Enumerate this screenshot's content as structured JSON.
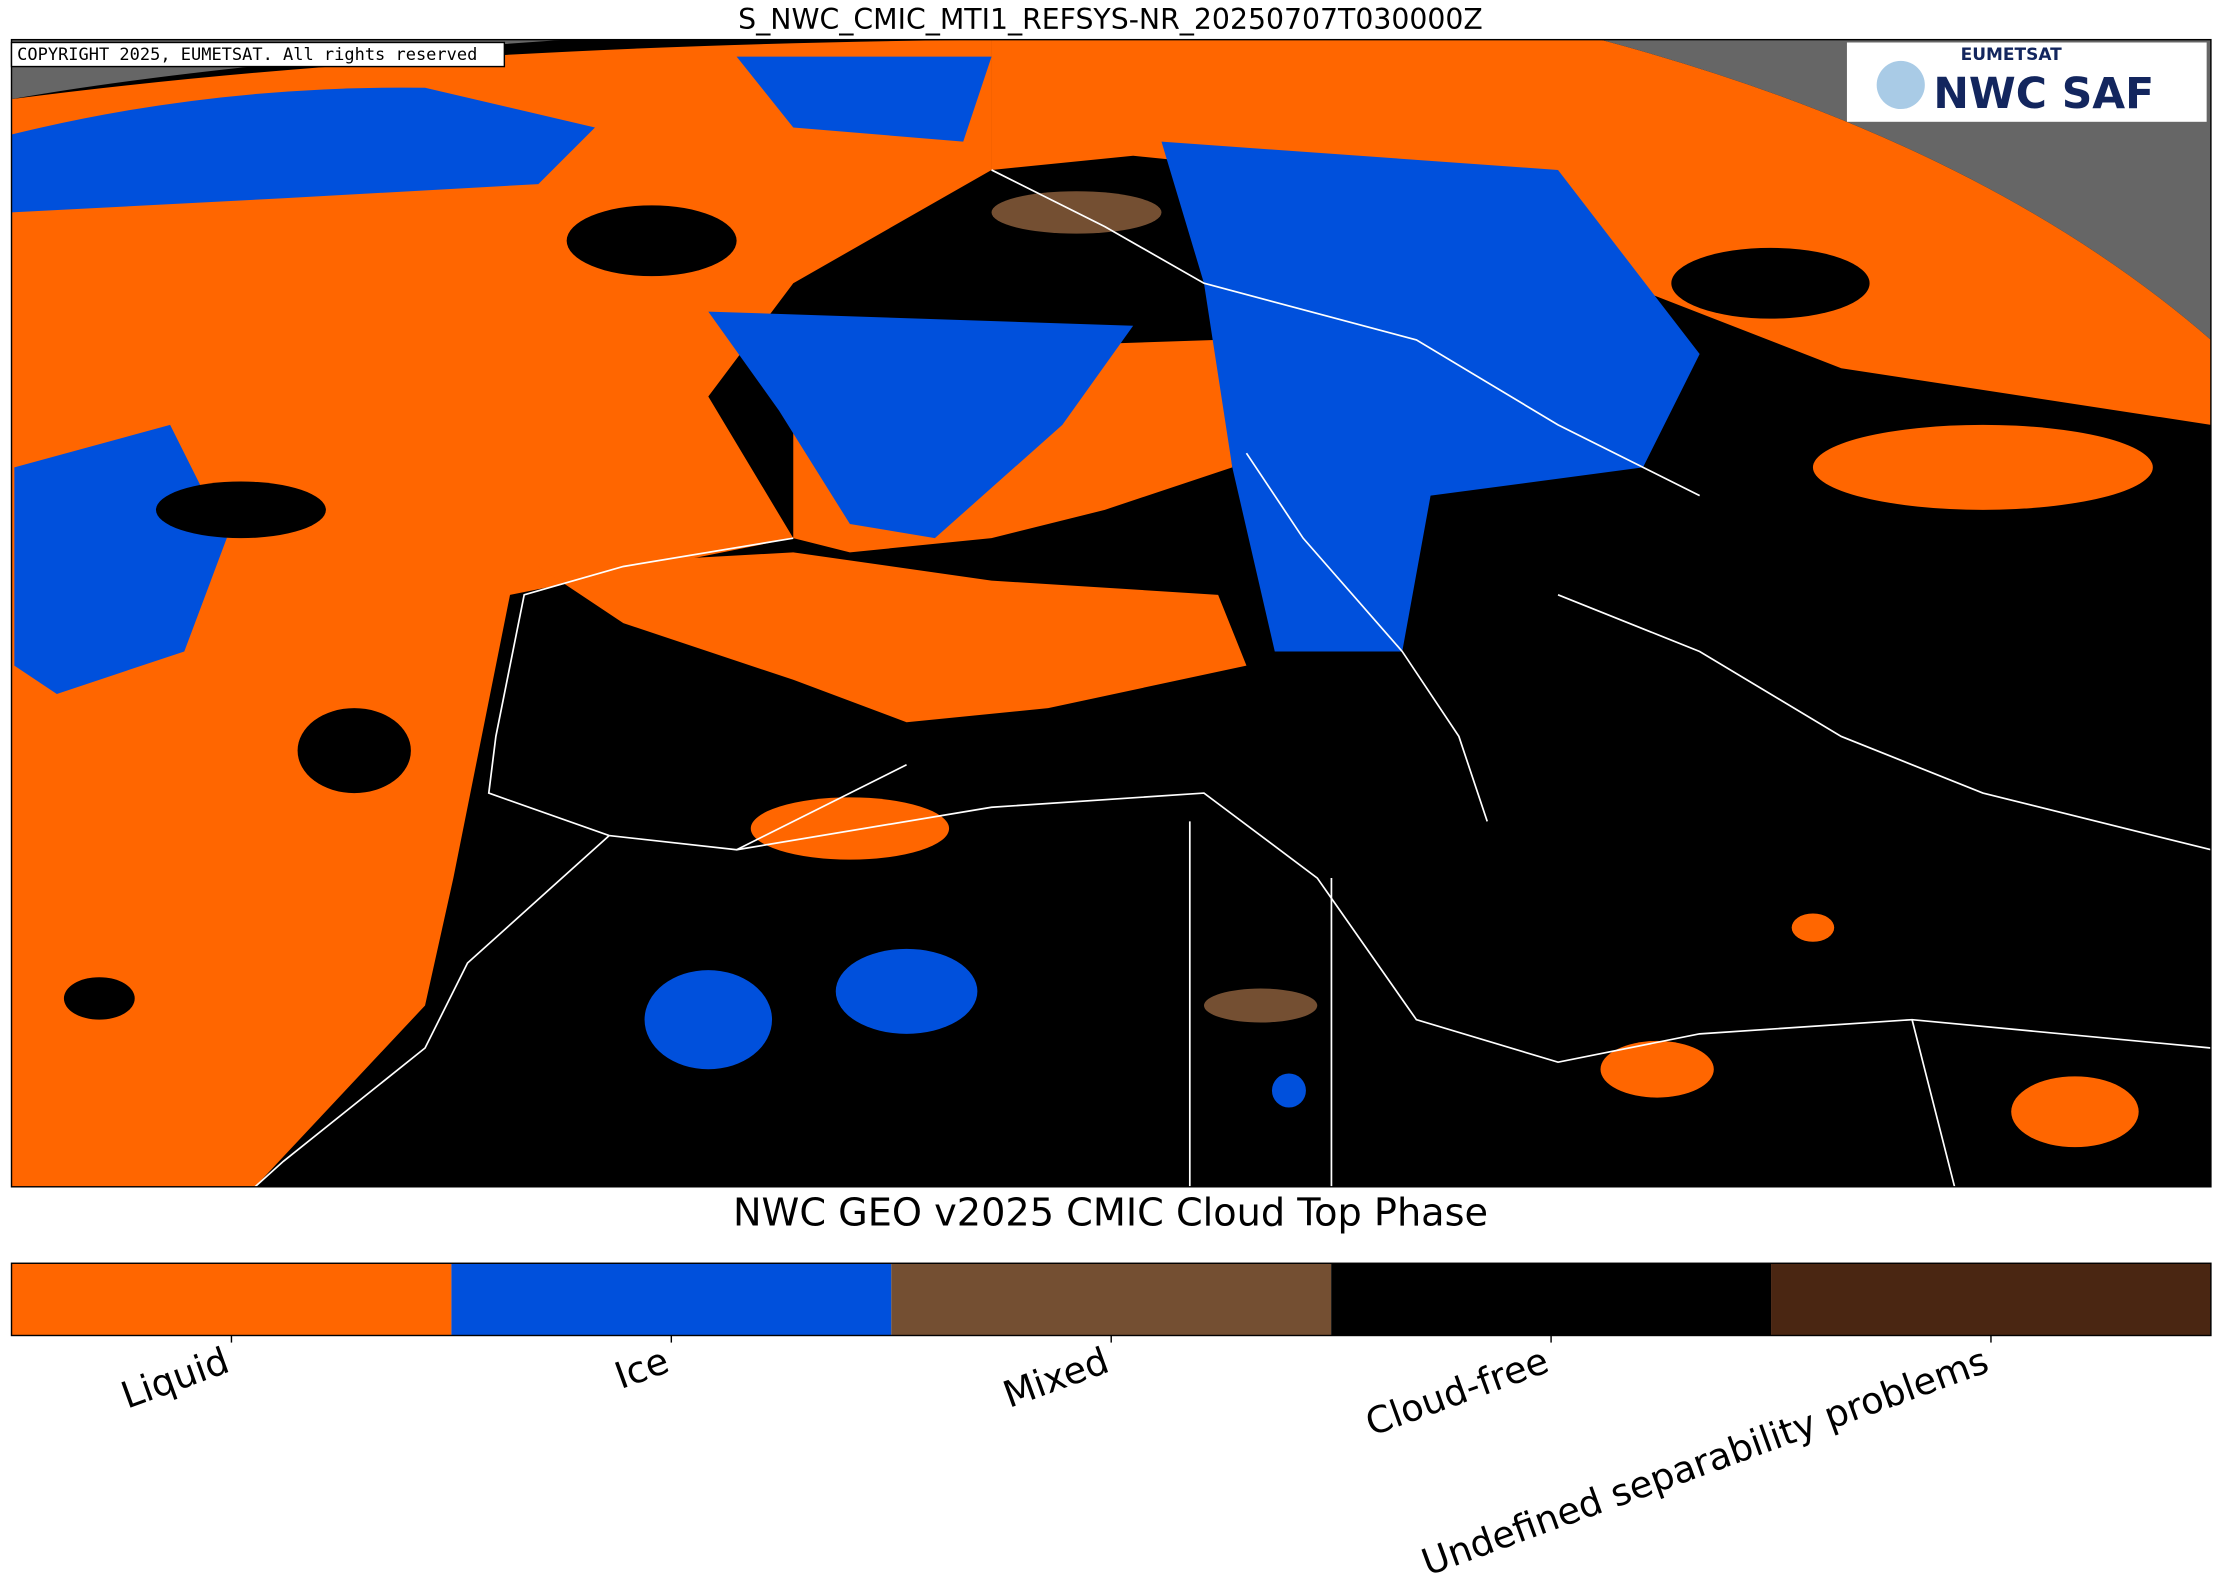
{
  "map": {
    "title": "S_NWC_CMIC_MTI1_REFSYS-NR_20250707T030000Z",
    "copyright": "COPYRIGHT 2025, EUMETSAT. All rights reserved",
    "logo": {
      "top": "EUMETSAT",
      "main": "NWC SAF"
    }
  },
  "legend": {
    "title": "NWC GEO v2025 CMIC Cloud Top Phase",
    "classes": [
      {
        "label": "Liquid",
        "color": "#ff6600"
      },
      {
        "label": "Ice",
        "color": "#0050dc"
      },
      {
        "label": "Mixed",
        "color": "#744f32"
      },
      {
        "label": "Cloud-free",
        "color": "#000000"
      },
      {
        "label": "Undefined separability problems",
        "color": "#4a2612"
      }
    ]
  }
}
